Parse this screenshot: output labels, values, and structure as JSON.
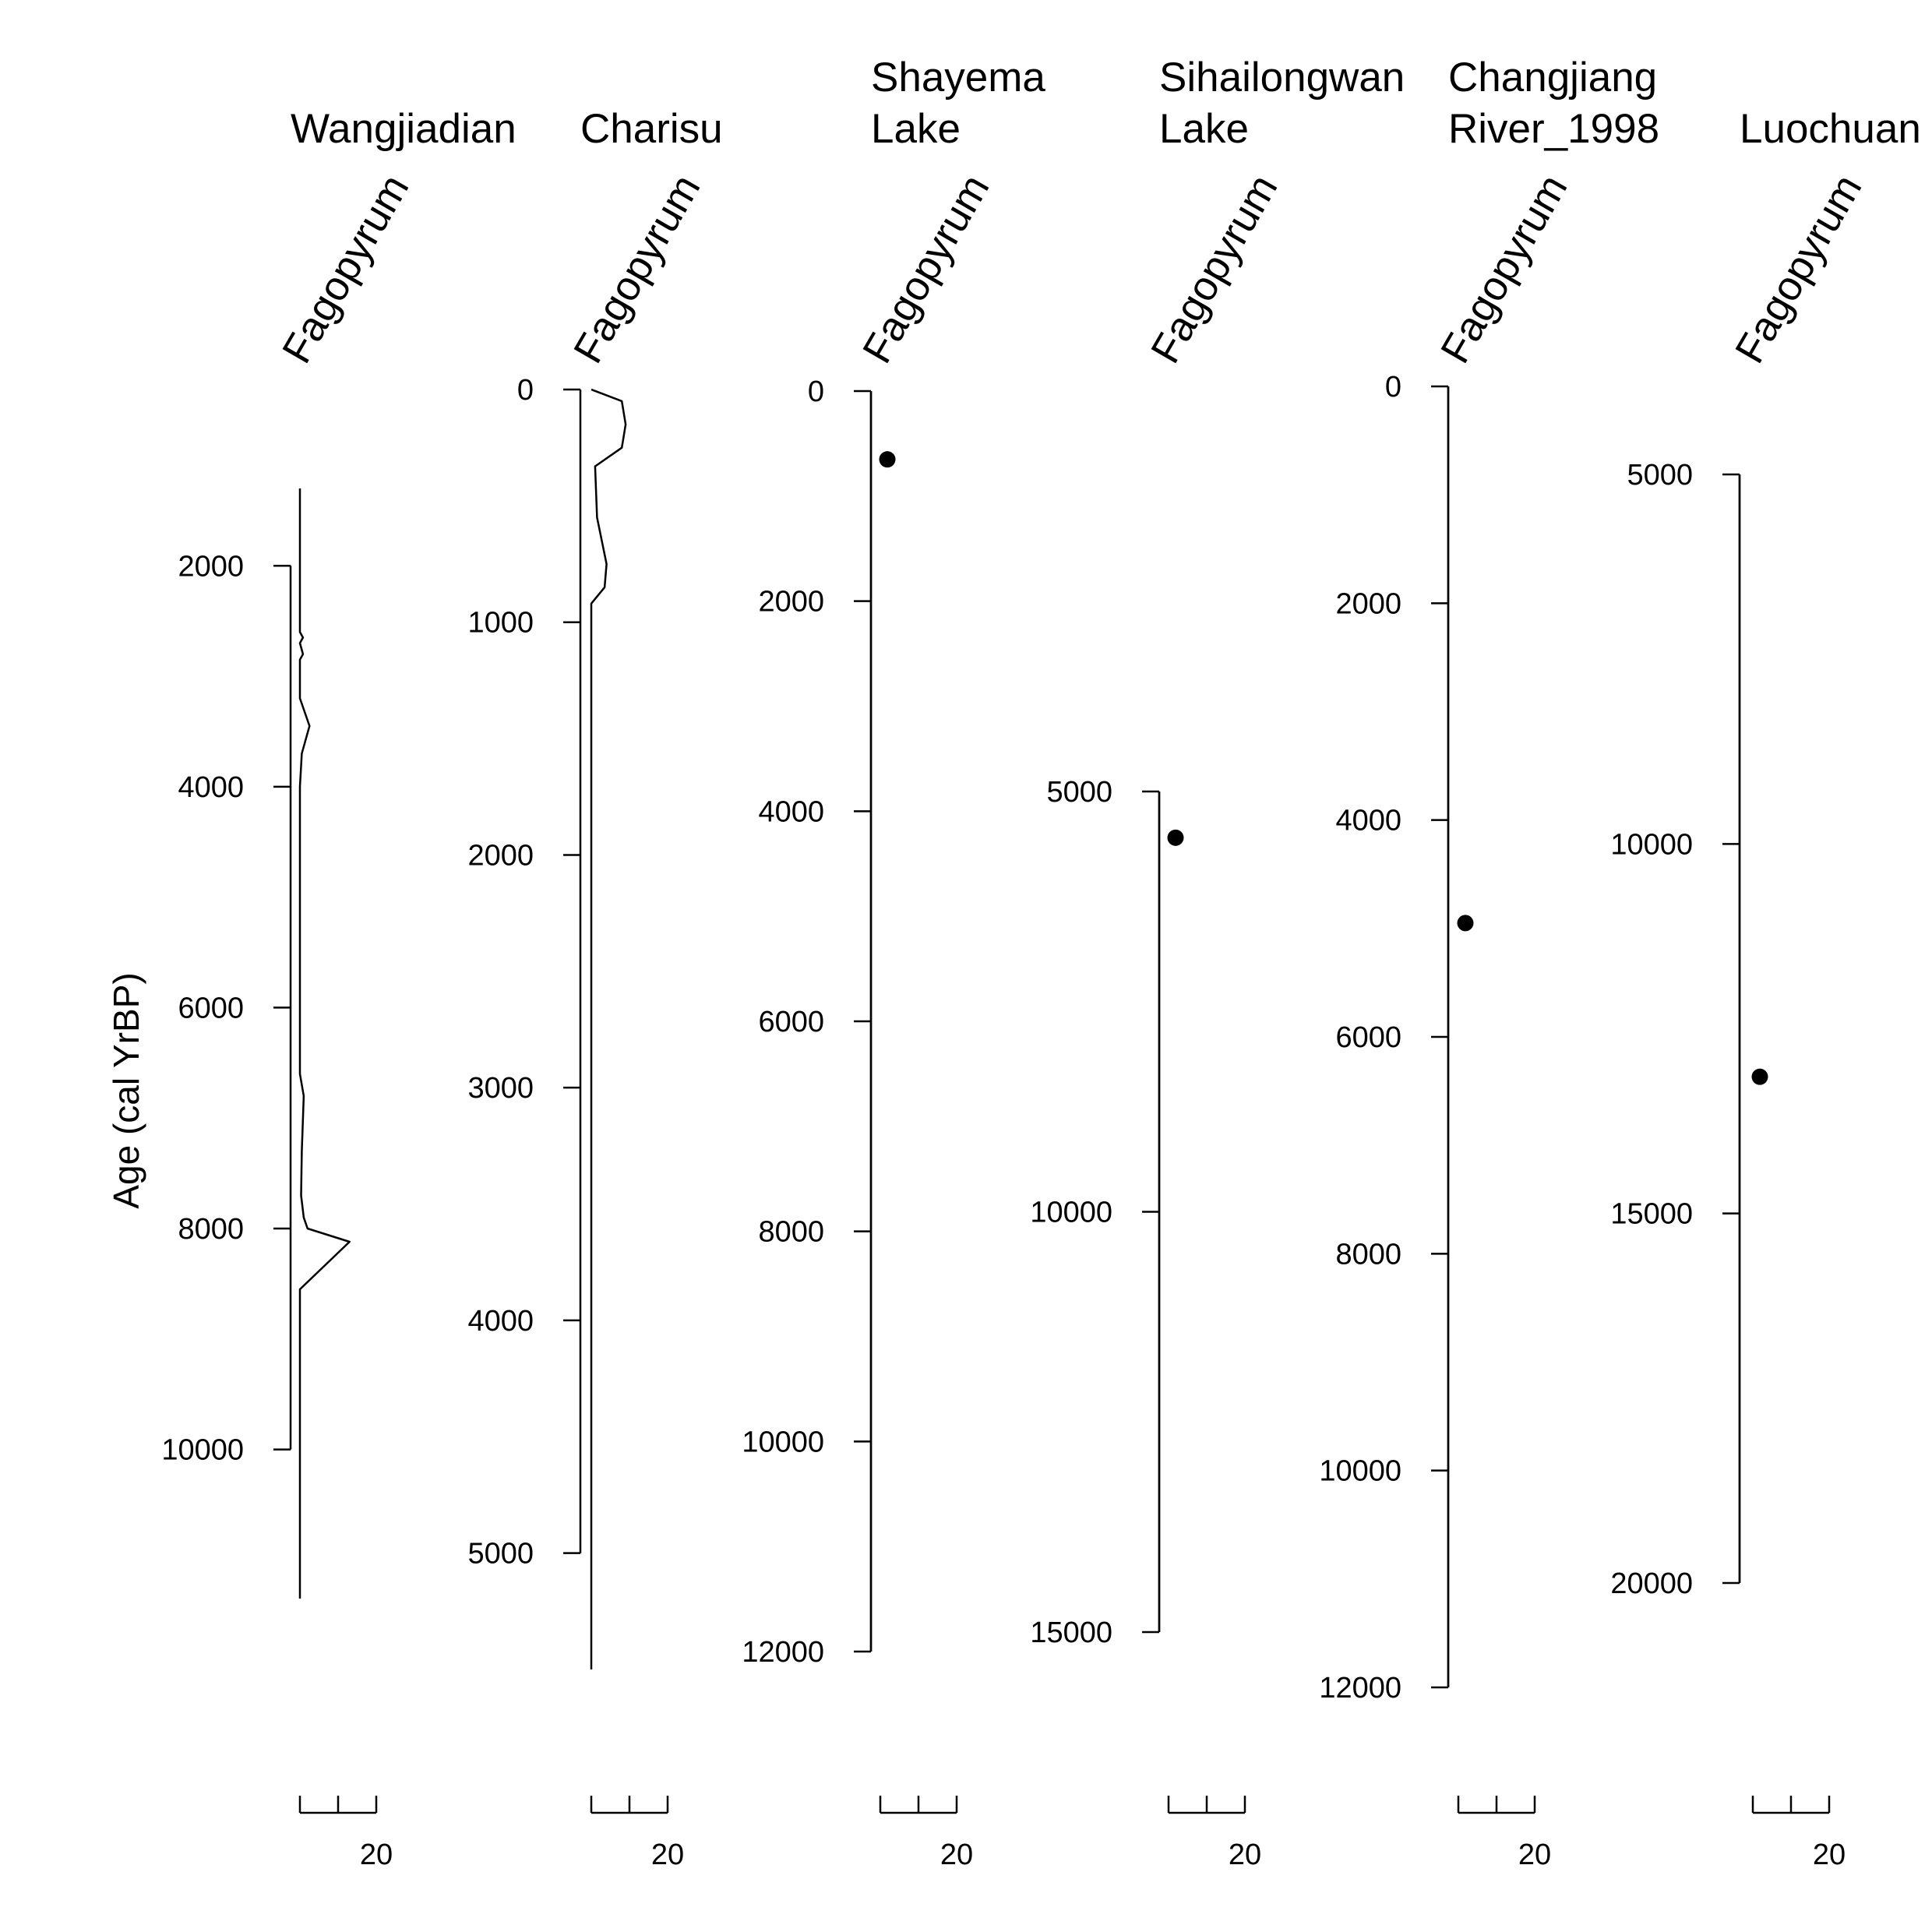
{
  "chart_data": {
    "type": "line",
    "ylabel": "Age (cal YrBP)",
    "x_axis_tick_label": "20",
    "panels": [
      {
        "site": [
          "Wangjiadian"
        ],
        "taxon": "Fagopyrum",
        "y_ticks": [
          2000,
          4000,
          6000,
          8000,
          10000
        ],
        "ylim": [
          1300,
          11350
        ],
        "xlim": [
          0,
          20
        ],
        "style": "line",
        "series": [
          {
            "y": 1300,
            "x": 0
          },
          {
            "y": 2600,
            "x": 0
          },
          {
            "y": 2650,
            "x": 0.8
          },
          {
            "y": 2700,
            "x": 0
          },
          {
            "y": 2800,
            "x": 0.8
          },
          {
            "y": 2850,
            "x": 0
          },
          {
            "y": 3200,
            "x": 0
          },
          {
            "y": 3450,
            "x": 2.5
          },
          {
            "y": 3700,
            "x": 0.5
          },
          {
            "y": 4000,
            "x": 0
          },
          {
            "y": 6600,
            "x": 0
          },
          {
            "y": 6800,
            "x": 1
          },
          {
            "y": 7300,
            "x": 0.5
          },
          {
            "y": 7700,
            "x": 0.3
          },
          {
            "y": 7900,
            "x": 1
          },
          {
            "y": 8000,
            "x": 2
          },
          {
            "y": 8120,
            "x": 13
          },
          {
            "y": 8550,
            "x": 0
          },
          {
            "y": 11350,
            "x": 0
          }
        ]
      },
      {
        "site": [
          "Charisu"
        ],
        "taxon": "Fagopyrum",
        "y_ticks": [
          0,
          1000,
          2000,
          3000,
          4000,
          5000
        ],
        "ylim": [
          0,
          5500
        ],
        "xlim": [
          0,
          20
        ],
        "style": "line",
        "series": [
          {
            "y": 0,
            "x": 0
          },
          {
            "y": 50,
            "x": 8
          },
          {
            "y": 150,
            "x": 9
          },
          {
            "y": 250,
            "x": 8
          },
          {
            "y": 330,
            "x": 1
          },
          {
            "y": 550,
            "x": 1.5
          },
          {
            "y": 750,
            "x": 4
          },
          {
            "y": 850,
            "x": 3.5
          },
          {
            "y": 920,
            "x": 0
          },
          {
            "y": 5500,
            "x": 0
          }
        ]
      },
      {
        "site": [
          "Shayema",
          "Lake"
        ],
        "taxon": "Fagopyrum",
        "y_ticks": [
          0,
          2000,
          4000,
          6000,
          8000,
          10000,
          12000
        ],
        "ylim": [
          0,
          12000
        ],
        "xlim": [
          0,
          20
        ],
        "style": "point",
        "series": [
          {
            "y": 650,
            "x": 0
          }
        ]
      },
      {
        "site": [
          "Sihailongwan",
          "Lake"
        ],
        "taxon": "Fagopyrum",
        "y_ticks": [
          5000,
          10000,
          15000
        ],
        "ylim": [
          5000,
          15000
        ],
        "xlim": [
          0,
          20
        ],
        "style": "point",
        "series": [
          {
            "y": 5550,
            "x": 0
          }
        ]
      },
      {
        "site": [
          "Changjiang",
          "River_1998"
        ],
        "taxon": "Fagopyrum",
        "y_ticks": [
          0,
          2000,
          4000,
          6000,
          8000,
          10000,
          12000
        ],
        "ylim": [
          0,
          12000
        ],
        "xlim": [
          0,
          20
        ],
        "style": "point",
        "series": [
          {
            "y": 4950,
            "x": 0
          }
        ]
      },
      {
        "site": [
          "Luochuan"
        ],
        "taxon": "Fagopyrum",
        "y_ticks": [
          5000,
          10000,
          15000,
          20000
        ],
        "ylim": [
          5000,
          20000
        ],
        "xlim": [
          0,
          20
        ],
        "style": "point",
        "series": [
          {
            "y": 13150,
            "x": 0
          }
        ]
      }
    ]
  }
}
